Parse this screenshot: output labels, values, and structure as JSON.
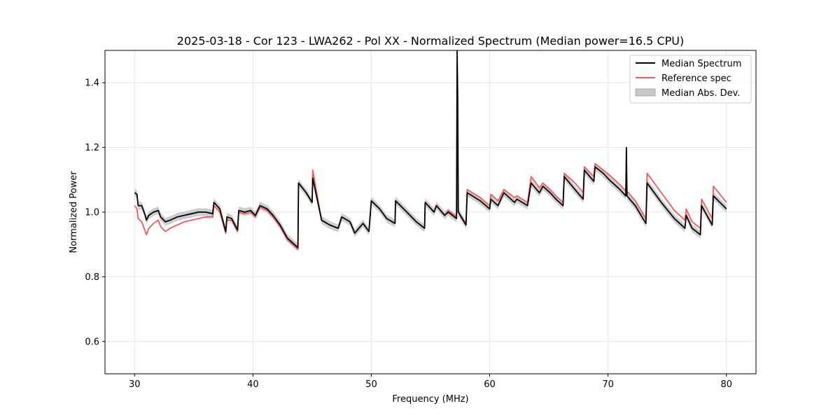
{
  "chart_data": {
    "type": "line",
    "title": "2025-03-18 - Cor 123 - LWA262 - Pol XX - Normalized Spectrum (Median power=16.5 CPU)",
    "xlabel": "Frequency (MHz)",
    "ylabel": "Normalized Power",
    "xlim": [
      27.5,
      82.5
    ],
    "ylim": [
      0.5,
      1.5
    ],
    "xticks": [
      30,
      40,
      50,
      60,
      70,
      80
    ],
    "yticks": [
      0.6,
      0.8,
      1.0,
      1.2,
      1.4
    ],
    "xtick_labels": [
      "30",
      "40",
      "50",
      "60",
      "70",
      "80"
    ],
    "ytick_labels": [
      "0.6",
      "0.8",
      "1.0",
      "1.2",
      "1.4"
    ],
    "grid": true,
    "legend_position": "top-right",
    "colors": {
      "median": "#000000",
      "reference": "#f05a5a",
      "mad": "#c8c8c8"
    },
    "legend": [
      {
        "label": "Median Spectrum",
        "kind": "line",
        "color": "#000000"
      },
      {
        "label": "Reference spec",
        "kind": "line",
        "color": "#f05a5a"
      },
      {
        "label": "Median Abs. Dev.",
        "kind": "patch",
        "color": "#c8c8c8"
      }
    ],
    "mad_halfwidth": 0.012,
    "series": [
      {
        "name": "Median Spectrum",
        "x": [
          30.0,
          30.2,
          30.3,
          30.6,
          30.9,
          31.0,
          31.2,
          31.6,
          32.0,
          32.2,
          32.6,
          33.0,
          33.6,
          34.2,
          34.8,
          35.4,
          36.0,
          36.6,
          36.7,
          37.2,
          37.7,
          37.8,
          38.2,
          38.7,
          38.8,
          39.3,
          39.8,
          40.2,
          40.6,
          40.9,
          41.2,
          41.7,
          42.3,
          42.9,
          43.8,
          43.85,
          44.5,
          45.0,
          45.05,
          45.8,
          46.5,
          47.2,
          47.5,
          48.2,
          48.6,
          49.3,
          49.8,
          50.0,
          50.7,
          51.3,
          52.0,
          52.05,
          53.0,
          53.8,
          54.5,
          54.55,
          55.3,
          55.5,
          56.2,
          56.5,
          57.2,
          57.25,
          57.3,
          57.35,
          58.0,
          58.1,
          59.2,
          60.0,
          60.1,
          60.7,
          61.2,
          62.1,
          62.3,
          63.2,
          63.5,
          64.2,
          64.5,
          65.1,
          65.6,
          66.2,
          66.3,
          67.2,
          67.9,
          68.0,
          68.8,
          68.9,
          69.6,
          70.1,
          71.0,
          71.5,
          71.55,
          71.6,
          72.3,
          73.2,
          73.3,
          74.5,
          75.6,
          76.5,
          76.6,
          77.1,
          77.8,
          77.9,
          78.8,
          78.9,
          80.0
        ],
        "y": [
          1.06,
          1.055,
          1.02,
          1.02,
          0.99,
          0.975,
          0.99,
          1.0,
          1.005,
          0.985,
          0.97,
          0.975,
          0.985,
          0.99,
          0.995,
          1.0,
          1.0,
          0.995,
          1.03,
          1.01,
          0.94,
          0.985,
          0.98,
          0.945,
          1.005,
          1.0,
          1.005,
          0.99,
          1.02,
          1.015,
          1.01,
          0.99,
          0.96,
          0.92,
          0.89,
          1.09,
          1.06,
          1.03,
          1.105,
          0.975,
          0.96,
          0.95,
          0.985,
          0.97,
          0.935,
          0.965,
          0.94,
          1.035,
          1.01,
          0.98,
          0.965,
          1.035,
          1.0,
          0.97,
          0.95,
          1.03,
          1.0,
          1.02,
          0.99,
          1.0,
          0.98,
          1.5,
          1.35,
          1.0,
          0.96,
          1.06,
          1.035,
          1.01,
          1.04,
          1.02,
          1.06,
          1.03,
          1.04,
          1.02,
          1.09,
          1.06,
          1.08,
          1.06,
          1.04,
          1.02,
          1.11,
          1.07,
          1.04,
          1.13,
          1.095,
          1.14,
          1.12,
          1.1,
          1.07,
          1.05,
          1.2,
          1.05,
          1.02,
          0.965,
          1.09,
          1.03,
          0.98,
          0.95,
          0.99,
          0.95,
          0.93,
          1.02,
          0.96,
          1.05,
          1.01
        ]
      },
      {
        "name": "Reference spec",
        "x": [
          30.0,
          30.2,
          30.3,
          30.6,
          30.9,
          31.0,
          31.2,
          31.6,
          32.0,
          32.2,
          32.6,
          33.0,
          33.6,
          34.2,
          34.8,
          35.4,
          36.0,
          36.6,
          36.7,
          37.2,
          37.7,
          37.8,
          38.2,
          38.7,
          38.8,
          39.3,
          39.8,
          40.2,
          40.6,
          40.9,
          41.2,
          41.7,
          42.3,
          42.9,
          43.8,
          43.85,
          44.5,
          45.0,
          45.05,
          45.8,
          46.5,
          47.2,
          47.5,
          48.2,
          48.6,
          49.3,
          49.8,
          50.0,
          50.7,
          51.3,
          52.0,
          52.05,
          53.0,
          53.8,
          54.5,
          54.55,
          55.3,
          55.5,
          56.2,
          56.5,
          57.2,
          57.25,
          57.3,
          57.35,
          58.0,
          58.1,
          59.2,
          60.0,
          60.1,
          60.7,
          61.2,
          62.1,
          62.3,
          63.2,
          63.5,
          64.2,
          64.5,
          65.1,
          65.6,
          66.2,
          66.3,
          67.2,
          67.9,
          68.0,
          68.8,
          68.9,
          69.6,
          70.1,
          71.0,
          71.5,
          71.55,
          71.6,
          72.3,
          73.2,
          73.3,
          74.5,
          75.6,
          76.5,
          76.6,
          77.1,
          77.8,
          77.9,
          78.8,
          78.9,
          80.0
        ],
        "y": [
          1.02,
          1.01,
          0.98,
          0.97,
          0.94,
          0.93,
          0.95,
          0.965,
          0.975,
          0.955,
          0.94,
          0.95,
          0.96,
          0.97,
          0.975,
          0.98,
          0.985,
          0.985,
          1.02,
          1.0,
          0.935,
          0.975,
          0.975,
          0.94,
          1.0,
          0.995,
          1.0,
          0.985,
          1.015,
          1.01,
          1.005,
          0.985,
          0.955,
          0.915,
          0.885,
          1.09,
          1.06,
          1.03,
          1.13,
          0.975,
          0.96,
          0.95,
          0.985,
          0.97,
          0.935,
          0.965,
          0.94,
          1.035,
          1.01,
          0.98,
          0.965,
          1.035,
          1.0,
          0.97,
          0.95,
          1.03,
          1.0,
          1.02,
          0.99,
          1.005,
          0.985,
          1.34,
          1.0,
          1.0,
          0.965,
          1.07,
          1.045,
          1.02,
          1.055,
          1.035,
          1.07,
          1.045,
          1.05,
          1.03,
          1.11,
          1.075,
          1.09,
          1.07,
          1.05,
          1.03,
          1.12,
          1.09,
          1.06,
          1.14,
          1.11,
          1.15,
          1.13,
          1.115,
          1.085,
          1.065,
          1.12,
          1.065,
          1.035,
          0.98,
          1.12,
          1.06,
          1.005,
          0.975,
          1.01,
          0.97,
          0.95,
          1.04,
          0.98,
          1.08,
          1.03
        ]
      }
    ]
  }
}
